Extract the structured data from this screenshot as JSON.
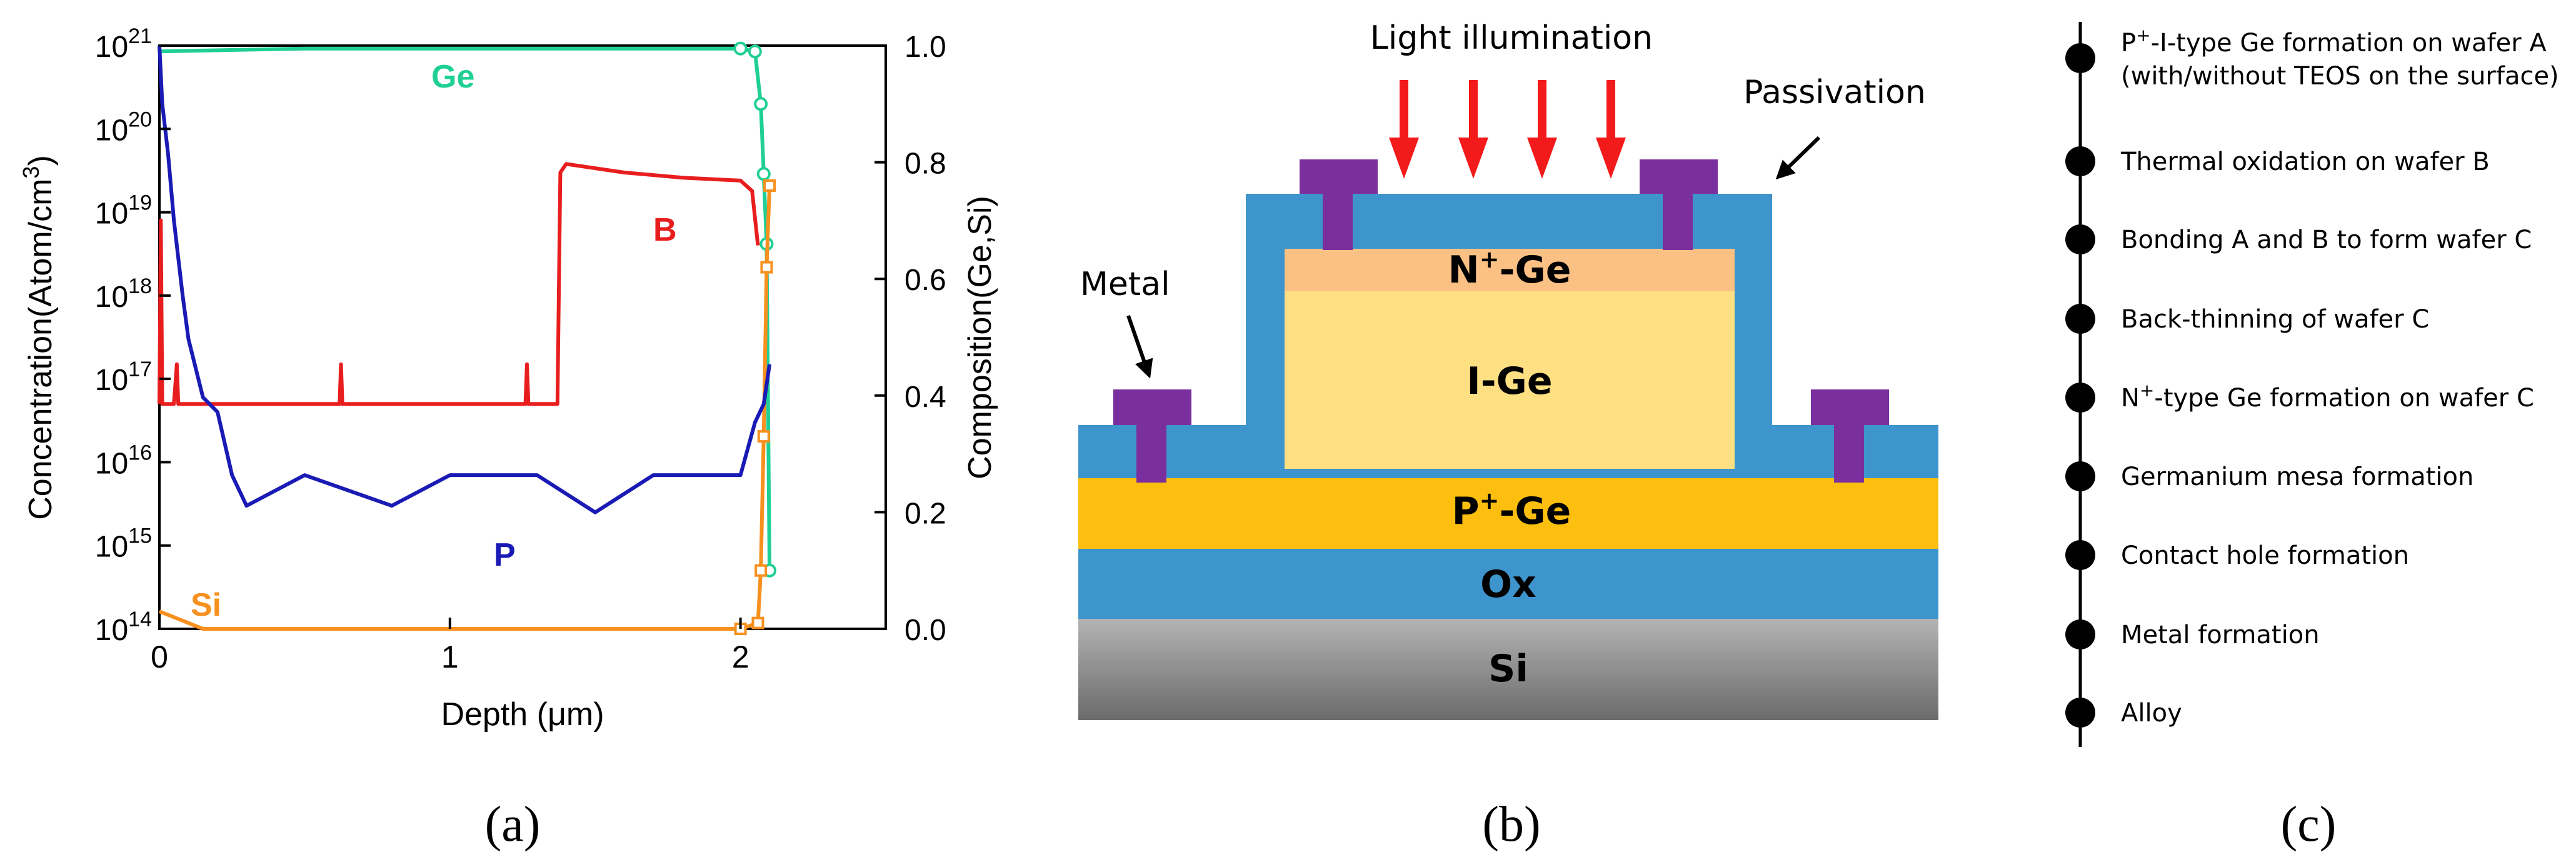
{
  "figure": {
    "panel_labels": [
      "(a)",
      "(b)",
      "(c)"
    ]
  },
  "chart_data": {
    "type": "line",
    "xlabel": "Depth (μm)",
    "ylabel_left_pre": "Concentration(Atom/cm",
    "ylabel_left_sup": "3",
    "ylabel_left_post": ")",
    "ylabel_right": "Composition(Ge,Si)",
    "xlim": [
      0,
      2.5
    ],
    "ylim_left": [
      100000000000000.0,
      1e+21
    ],
    "ylim_right": [
      0.0,
      1.0
    ],
    "yscale_left": "log",
    "x_ticks": [
      "0",
      "1",
      "2"
    ],
    "y_left_ticks": [
      {
        "base": "10",
        "exp": "21"
      },
      {
        "base": "10",
        "exp": "20"
      },
      {
        "base": "10",
        "exp": "19"
      },
      {
        "base": "10",
        "exp": "18"
      },
      {
        "base": "10",
        "exp": "17"
      },
      {
        "base": "10",
        "exp": "16"
      },
      {
        "base": "10",
        "exp": "15"
      },
      {
        "base": "10",
        "exp": "14"
      }
    ],
    "y_right_ticks": [
      "1.0",
      "0.8",
      "0.6",
      "0.4",
      "0.2",
      "0.0"
    ],
    "series": [
      {
        "name": "Ge",
        "axis": "right",
        "color": "#1fcf95",
        "marker": "circle",
        "x": [
          0.0,
          0.5,
          1.0,
          1.5,
          2.0,
          2.05,
          2.07,
          2.08,
          2.09,
          2.1
        ],
        "y": [
          0.99,
          0.995,
          0.995,
          0.995,
          0.995,
          0.99,
          0.9,
          0.78,
          0.66,
          0.1
        ]
      },
      {
        "name": "Si",
        "axis": "right",
        "color": "#f7901e",
        "marker": "square",
        "x": [
          0.0,
          0.05,
          0.1,
          0.15,
          1.0,
          2.0,
          2.06,
          2.07,
          2.08,
          2.09,
          2.1
        ],
        "y": [
          0.03,
          0.02,
          0.01,
          0.0,
          0.0,
          0.0,
          0.01,
          0.1,
          0.33,
          0.62,
          0.76
        ]
      },
      {
        "name": "B",
        "axis": "left",
        "color": "#e81e1e",
        "x": [
          0.0,
          0.005,
          0.01,
          0.05,
          0.06,
          0.065,
          0.62,
          0.625,
          0.63,
          1.26,
          1.265,
          1.27,
          1.37,
          1.38,
          1.4,
          1.6,
          1.8,
          2.0,
          2.04,
          2.06
        ],
        "y": [
          5e+16,
          8e+18,
          5e+16,
          5e+16,
          1.5e+17,
          5e+16,
          5e+16,
          1.5e+17,
          5e+16,
          5e+16,
          1.5e+17,
          5e+16,
          5e+16,
          3e+19,
          3.8e+19,
          3e+19,
          2.6e+19,
          2.4e+19,
          1.8e+19,
          4e+18
        ]
      },
      {
        "name": "P",
        "axis": "left",
        "color": "#1a1ab5",
        "x": [
          0.0,
          0.01,
          0.03,
          0.05,
          0.08,
          0.1,
          0.15,
          0.2,
          0.25,
          0.3,
          0.5,
          0.8,
          1.0,
          1.3,
          1.5,
          1.7,
          2.0,
          2.05,
          2.08,
          2.1
        ],
        "y": [
          1e+21,
          2e+20,
          5e+19,
          8e+18,
          1e+18,
          3e+17,
          6e+16,
          4e+16,
          7000000000000000.0,
          3000000000000000.0,
          7000000000000000.0,
          3000000000000000.0,
          7000000000000000.0,
          7000000000000000.0,
          2500000000000000.0,
          7000000000000000.0,
          7000000000000000.0,
          3e+16,
          5e+16,
          1.5e+17
        ]
      }
    ],
    "annotations": [
      {
        "text": "Ge",
        "color": "#1fcf95"
      },
      {
        "text": "B",
        "color": "#e81e1e"
      },
      {
        "text": "P",
        "color": "#1a1ab5"
      },
      {
        "text": "Si",
        "color": "#f7901e"
      }
    ]
  },
  "device": {
    "title_light": "Light illumination",
    "label_passivation": "Passivation",
    "label_metal": "Metal",
    "layers": {
      "n_ge_pre": "N",
      "n_ge_sup": "+",
      "n_ge_post": "-Ge",
      "i_ge": "I-Ge",
      "p_ge_pre": "P",
      "p_ge_sup": "+",
      "p_ge_post": "-Ge",
      "ox": "Ox",
      "si": "Si"
    },
    "colors": {
      "n_ge": "#fbc184",
      "i_ge": "#fee082",
      "p_ge": "#fdbf0f",
      "ox": "#3e94cc",
      "metal": "#7b2f9e",
      "arrow": "#f21a1a"
    }
  },
  "process": {
    "steps": [
      {
        "pre": "P",
        "sup": "+",
        "post": "-I-type Ge formation on wafer A"
      },
      {
        "pre": "(with/without TEOS on the surface)",
        "sup": "",
        "post": ""
      },
      {
        "pre": "Thermal oxidation on wafer B",
        "sup": "",
        "post": ""
      },
      {
        "pre": "Bonding A and B to form wafer C",
        "sup": "",
        "post": ""
      },
      {
        "pre": "Back-thinning of wafer C",
        "sup": "",
        "post": ""
      },
      {
        "pre": "N",
        "sup": "+",
        "post": "-type Ge formation on wafer C"
      },
      {
        "pre": "Germanium mesa formation",
        "sup": "",
        "post": ""
      },
      {
        "pre": "Contact hole formation",
        "sup": "",
        "post": ""
      },
      {
        "pre": "Metal formation",
        "sup": "",
        "post": ""
      },
      {
        "pre": "Alloy",
        "sup": "",
        "post": ""
      }
    ]
  }
}
